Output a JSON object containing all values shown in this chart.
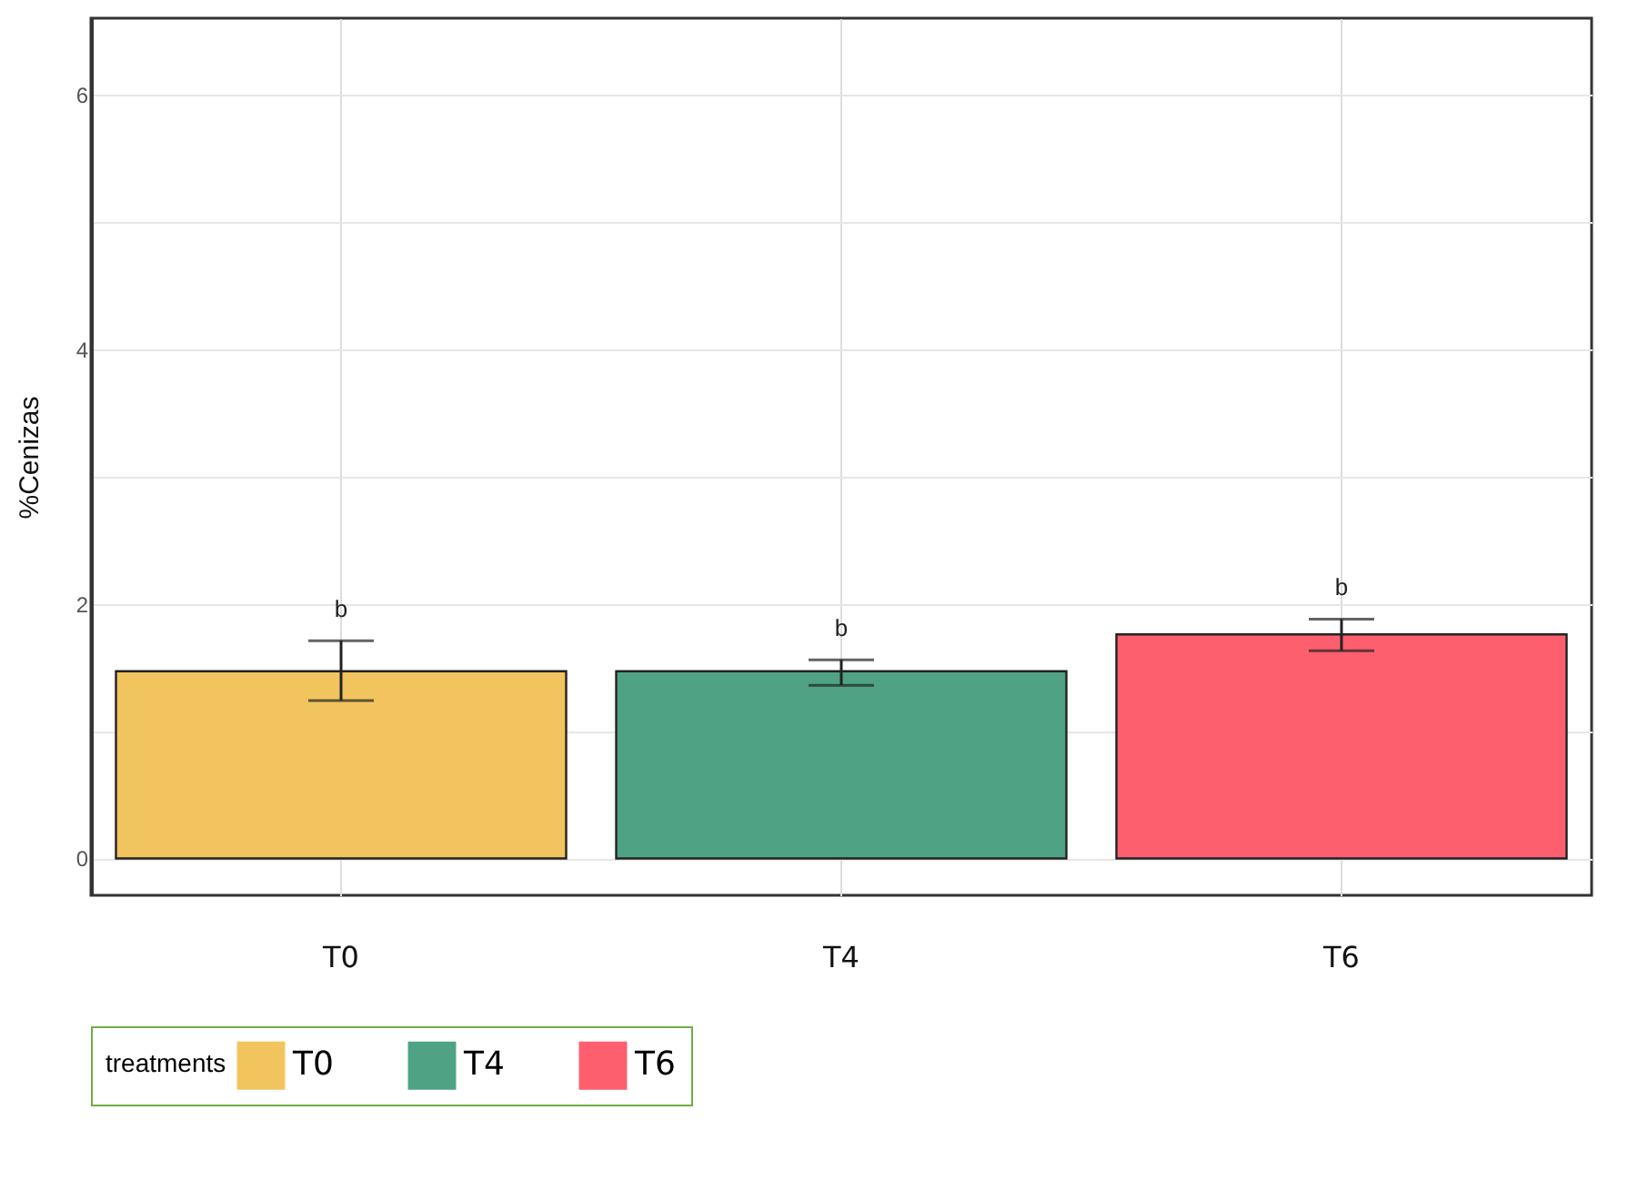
{
  "chart_data": {
    "type": "bar",
    "ylabel": "%Cenizas",
    "legend_title": "treatments",
    "categories": [
      "T0",
      "T4",
      "T6"
    ],
    "stacked": true,
    "series": [
      {
        "name": "T0",
        "color": "#f2c45e",
        "values": [
          1.47,
          null,
          null
        ],
        "errors": [
          [
            1.24,
            1.71
          ],
          null,
          null
        ]
      },
      {
        "name": "T4",
        "color": "#4fa384",
        "values": [
          null,
          1.47,
          null
        ],
        "errors": [
          null,
          [
            1.36,
            1.56
          ],
          null
        ]
      },
      {
        "name": "T6",
        "color": "#fe5f6f",
        "values": [
          null,
          null,
          1.76
        ],
        "errors": [
          null,
          null,
          [
            1.63,
            1.88
          ]
        ]
      }
    ],
    "ylim": [
      -0.29,
      6.6
    ],
    "yticks": [
      0,
      {
        "value": 1,
        "label": null
      },
      2,
      {
        "value": 3,
        "label": null
      },
      4,
      {
        "value": 5,
        "label": null
      },
      6
    ],
    "grid": true,
    "legend": "bottom",
    "annotations": [
      {
        "text": "b",
        "x": "T0",
        "y": 1.71
      },
      {
        "text": "b",
        "x": "T4",
        "y": 1.56
      },
      {
        "text": "b",
        "x": "T6",
        "y": 1.88
      }
    ]
  }
}
